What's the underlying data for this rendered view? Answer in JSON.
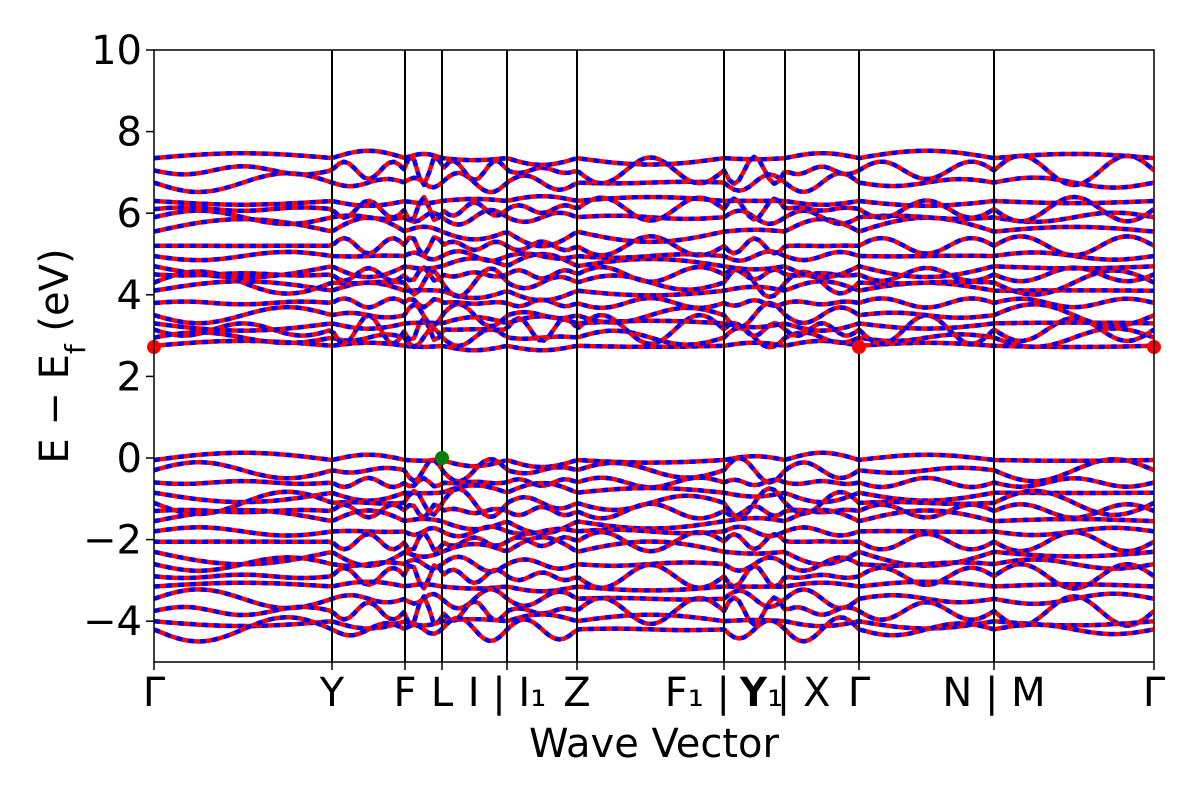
{
  "chart_data": {
    "type": "line",
    "title": "",
    "xlabel": "Wave Vector",
    "ylabel": "E − E",
    "ylabel_sub": "f",
    "ylabel_unit": " (eV)",
    "ylim": [
      -5,
      10
    ],
    "yticks": [
      {
        "value": 10,
        "label": "10"
      },
      {
        "value": 8,
        "label": "8"
      },
      {
        "value": 6,
        "label": "6"
      },
      {
        "value": 4,
        "label": "4"
      },
      {
        "value": 2,
        "label": "2"
      },
      {
        "value": 0,
        "label": "0"
      },
      {
        "value": -2,
        "label": "−2"
      },
      {
        "value": -4,
        "label": "−4"
      }
    ],
    "xlim": [
      0,
      1
    ],
    "kpath": [
      {
        "x": 0.0,
        "label": "Γ"
      },
      {
        "x": 0.178,
        "label": "Y"
      },
      {
        "x": 0.251,
        "label": "F"
      },
      {
        "x": 0.288,
        "label": "L"
      },
      {
        "x": 0.353,
        "label": "I | I₁"
      },
      {
        "x": 0.423,
        "label": "Z"
      },
      {
        "x": 0.57,
        "label": "F₁ | Y₁"
      },
      {
        "x": 0.631,
        "label": "Y | X"
      },
      {
        "x": 0.705,
        "label": "Γ"
      },
      {
        "x": 0.84,
        "label": "N | M"
      },
      {
        "x": 1.0,
        "label": "Γ"
      }
    ],
    "series": [
      {
        "color": "#ff0000",
        "dash": "solid"
      },
      {
        "color": "#0000ff",
        "dash": "dashed"
      }
    ],
    "conduction_bands": [
      2.75,
      2.95,
      3.15,
      3.3,
      3.5,
      3.8,
      4.1,
      4.3,
      4.5,
      4.7,
      4.95,
      5.2,
      5.55,
      5.9,
      6.1,
      6.3,
      6.75,
      7.05,
      7.35
    ],
    "valence_bands": [
      -0.05,
      -0.3,
      -0.6,
      -0.85,
      -1.1,
      -1.3,
      -1.55,
      -1.8,
      -2.05,
      -2.3,
      -2.6,
      -2.9,
      -3.15,
      -3.45,
      -3.75,
      -4.0,
      -4.2
    ],
    "markers": [
      {
        "name": "cbm-marker",
        "x": 0.0,
        "y": 2.72,
        "color": "#ff0000"
      },
      {
        "name": "cbm-marker",
        "x": 0.705,
        "y": 2.72,
        "color": "#ff0000"
      },
      {
        "name": "cbm-marker",
        "x": 1.0,
        "y": 2.72,
        "color": "#ff0000"
      },
      {
        "name": "vbm-marker",
        "x": 0.288,
        "y": 0.0,
        "color": "#008000"
      }
    ]
  }
}
